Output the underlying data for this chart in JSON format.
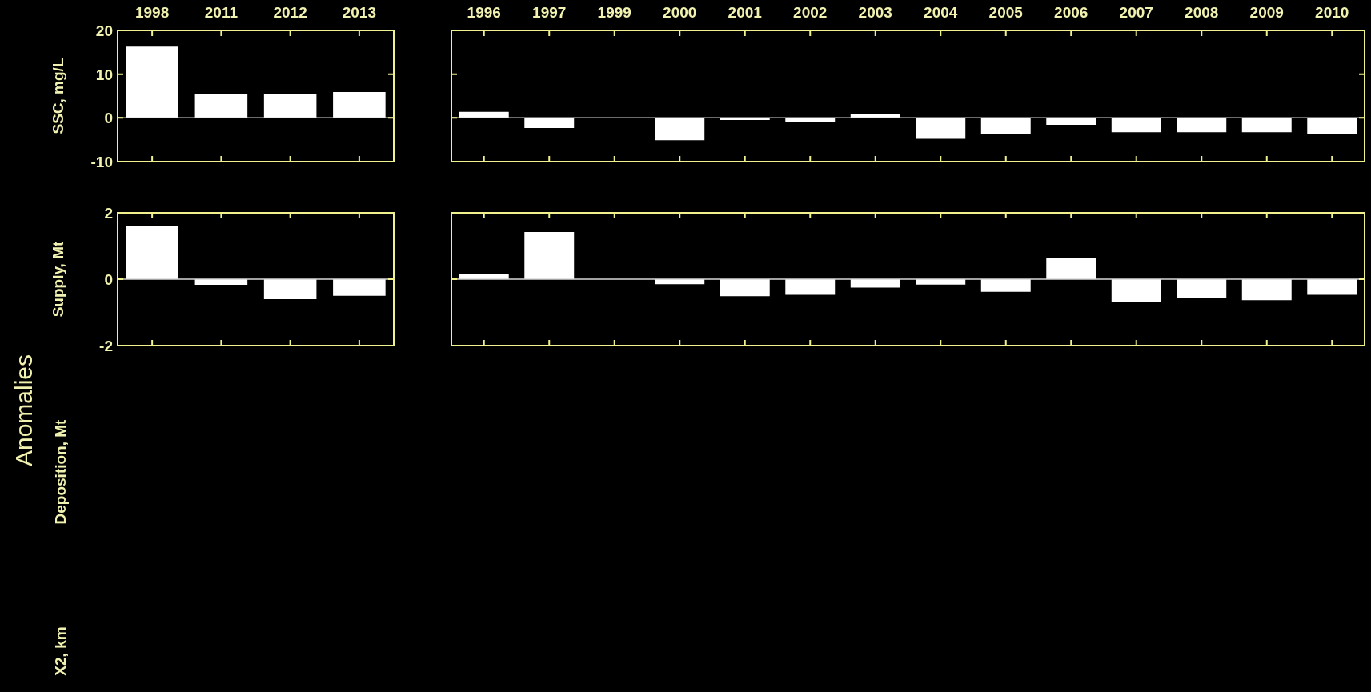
{
  "chart_data": [
    {
      "type": "bar",
      "categories": [
        "1998",
        "2011",
        "2012",
        "2013"
      ],
      "values": [
        16.3,
        5.5,
        5.5,
        5.9
      ],
      "color": "#ffffff",
      "ylim": [
        -10,
        20
      ],
      "yticks": [
        -10,
        0,
        10,
        20
      ],
      "ylabel": "SSC, mg/L",
      "ref_lines": [
        {
          "axis": "y",
          "value": 0,
          "color": "#d9d9d9"
        }
      ],
      "annotations": [
        "Anomalies",
        "Deposition, Mt",
        "X2, km"
      ]
    },
    {
      "type": "bar",
      "categories": [
        "1996",
        "1997",
        "1999",
        "2000",
        "2001",
        "2002",
        "2003",
        "2004",
        "2005",
        "2006",
        "2007",
        "2008",
        "2009",
        "2010"
      ],
      "values": [
        1.4,
        -2.3,
        null,
        -5.1,
        -0.5,
        -1.0,
        0.9,
        -4.8,
        -3.6,
        -1.6,
        -3.3,
        -3.3,
        -3.3,
        -3.8
      ],
      "color": "#ffffff",
      "ylim": [
        -10,
        20
      ],
      "yticks": [
        -10,
        0,
        10,
        20
      ],
      "tick_labels": "x",
      "ref_lines": [
        {
          "axis": "y",
          "value": 0,
          "color": "#d9d9d9"
        }
      ]
    },
    {
      "type": "bar",
      "categories": [
        "1998",
        "2011",
        "2012",
        "2013"
      ],
      "values": [
        1.6,
        -0.17,
        -0.6,
        -0.5
      ],
      "color": "#ffffff",
      "ylim": [
        -2,
        2
      ],
      "yticks": [
        -2,
        0,
        2
      ],
      "ylabel": "Supply, Mt",
      "tick_labels": "y",
      "ref_lines": [
        {
          "axis": "y",
          "value": 0,
          "color": "#d9d9d9"
        }
      ]
    },
    {
      "type": "bar",
      "categories": [
        "1996",
        "1997",
        "1999",
        "2000",
        "2001",
        "2002",
        "2003",
        "2004",
        "2005",
        "2006",
        "2007",
        "2008",
        "2009",
        "2010"
      ],
      "values": [
        0.17,
        1.42,
        null,
        -0.15,
        -0.51,
        -0.47,
        -0.25,
        -0.16,
        -0.38,
        0.65,
        -0.68,
        -0.57,
        -0.63,
        -0.47
      ],
      "color": "#ffffff",
      "ylim": [
        -2,
        2
      ],
      "yticks": [
        -2,
        0,
        2
      ],
      "tick_labels": false,
      "ref_lines": [
        {
          "axis": "y",
          "value": 0,
          "color": "#d9d9d9"
        }
      ]
    }
  ]
}
